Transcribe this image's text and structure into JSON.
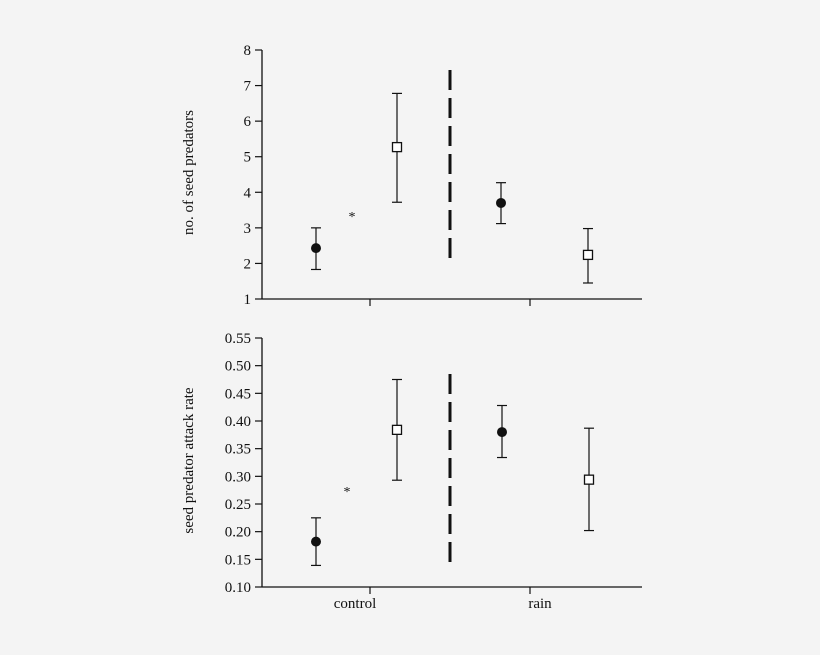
{
  "colors": {
    "background": "#f4f4f4",
    "ink": "#111111",
    "open_marker_fill": "#ffffff"
  },
  "chart_data": [
    {
      "type": "scatter",
      "ylabel": "no. of seed predators",
      "ylim": [
        1,
        8
      ],
      "yticks": [
        "1",
        "2",
        "3",
        "4",
        "5",
        "6",
        "7",
        "8"
      ],
      "categories": [
        "control",
        "rain"
      ],
      "show_category_labels": false,
      "grid": false,
      "annotation": "*",
      "points": [
        {
          "category": "control",
          "marker": "filled-circle",
          "y": 2.43,
          "err_low": 1.83,
          "err_high": 3.0
        },
        {
          "category": "control",
          "marker": "open-square",
          "y": 5.27,
          "err_low": 3.72,
          "err_high": 6.78
        },
        {
          "category": "rain",
          "marker": "filled-circle",
          "y": 3.7,
          "err_low": 3.12,
          "err_high": 4.27
        },
        {
          "category": "rain",
          "marker": "open-square",
          "y": 2.24,
          "err_low": 1.45,
          "err_high": 2.98
        }
      ]
    },
    {
      "type": "scatter",
      "ylabel": "seed predator attack rate",
      "ylim": [
        0.1,
        0.55
      ],
      "yticks": [
        "0.10",
        "0.15",
        "0.20",
        "0.25",
        "0.30",
        "0.35",
        "0.40",
        "0.45",
        "0.50",
        "0.55"
      ],
      "categories": [
        "control",
        "rain"
      ],
      "show_category_labels": true,
      "grid": false,
      "annotation": "*",
      "points": [
        {
          "category": "control",
          "marker": "filled-circle",
          "y": 0.182,
          "err_low": 0.139,
          "err_high": 0.225
        },
        {
          "category": "control",
          "marker": "open-square",
          "y": 0.384,
          "err_low": 0.293,
          "err_high": 0.475
        },
        {
          "category": "rain",
          "marker": "filled-circle",
          "y": 0.38,
          "err_low": 0.334,
          "err_high": 0.428
        },
        {
          "category": "rain",
          "marker": "open-square",
          "y": 0.294,
          "err_low": 0.202,
          "err_high": 0.387
        }
      ]
    }
  ]
}
